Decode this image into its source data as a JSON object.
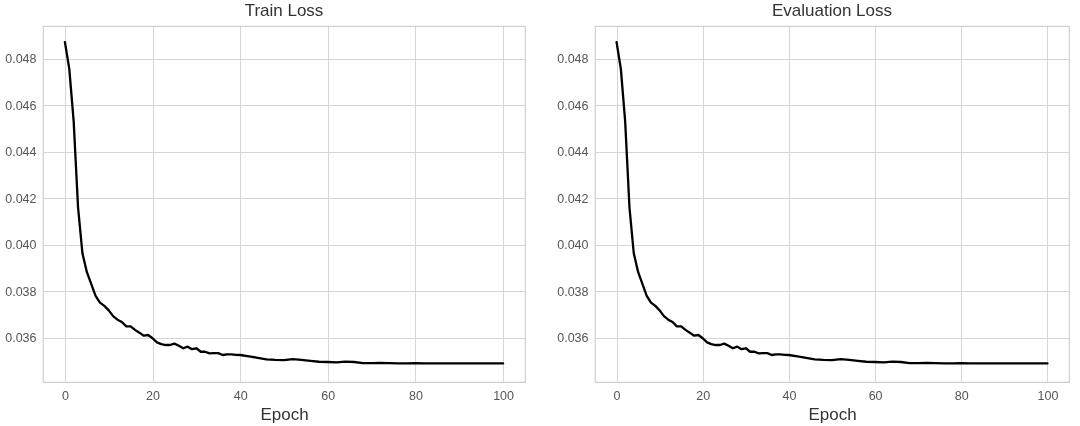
{
  "chart_data": [
    {
      "type": "line",
      "title": "Train Loss",
      "xlabel": "Epoch",
      "x": [
        0,
        1,
        2,
        3,
        4,
        5,
        6,
        7,
        8,
        9,
        10,
        11,
        12,
        13,
        14,
        15,
        16,
        17,
        18,
        19,
        20,
        21,
        22,
        23,
        24,
        25,
        26,
        27,
        28,
        29,
        30,
        31,
        32,
        33,
        34,
        35,
        36,
        37,
        38,
        39,
        40,
        42,
        44,
        46,
        48,
        50,
        52,
        54,
        56,
        58,
        60,
        62,
        64,
        66,
        68,
        70,
        72,
        74,
        76,
        78,
        80,
        82,
        84,
        86,
        88,
        90,
        92,
        94,
        96,
        98,
        100
      ],
      "series": [
        {
          "color": "#000000",
          "values": [
            0.04871,
            0.04756,
            0.0453,
            0.0416,
            0.03963,
            0.03883,
            0.03832,
            0.0378,
            0.03751,
            0.03737,
            0.03718,
            0.03693,
            0.03678,
            0.03668,
            0.03649,
            0.03649,
            0.03634,
            0.03622,
            0.03609,
            0.03612,
            0.03598,
            0.0358,
            0.03573,
            0.03569,
            0.03569,
            0.03575,
            0.03566,
            0.03555,
            0.03562,
            0.03551,
            0.03555,
            0.0354,
            0.0354,
            0.03533,
            0.03534,
            0.03534,
            0.03526,
            0.03529,
            0.03529,
            0.03527,
            0.03526,
            0.0352,
            0.03514,
            0.03507,
            0.03505,
            0.03504,
            0.03508,
            0.03505,
            0.03501,
            0.03497,
            0.03496,
            0.03494,
            0.03498,
            0.03496,
            0.03491,
            0.03491,
            0.03492,
            0.03491,
            0.0349,
            0.0349,
            0.03491,
            0.0349,
            0.0349,
            0.0349,
            0.0349,
            0.0349,
            0.0349,
            0.0349,
            0.0349,
            0.0349,
            0.0349
          ]
        }
      ],
      "xlim": [
        -5,
        105
      ],
      "ylim": [
        0.0341,
        0.0494
      ],
      "xticks": [
        0,
        20,
        40,
        60,
        80,
        100
      ],
      "yticks": [
        0.036,
        0.038,
        {
          "value": 0.04,
          "label": "0.040"
        },
        0.042,
        0.044,
        0.046,
        0.048
      ],
      "grid": true
    },
    {
      "type": "line",
      "title": "Evaluation Loss",
      "xlabel": "Epoch",
      "x": [
        0,
        1,
        2,
        3,
        4,
        5,
        6,
        7,
        8,
        9,
        10,
        11,
        12,
        13,
        14,
        15,
        16,
        17,
        18,
        19,
        20,
        21,
        22,
        23,
        24,
        25,
        26,
        27,
        28,
        29,
        30,
        31,
        32,
        33,
        34,
        35,
        36,
        37,
        38,
        39,
        40,
        42,
        44,
        46,
        48,
        50,
        52,
        54,
        56,
        58,
        60,
        62,
        64,
        66,
        68,
        70,
        72,
        74,
        76,
        78,
        80,
        82,
        84,
        86,
        88,
        90,
        92,
        94,
        96,
        98,
        100
      ],
      "series": [
        {
          "color": "#000000",
          "values": [
            0.04871,
            0.04756,
            0.0453,
            0.0416,
            0.03963,
            0.03883,
            0.03832,
            0.0378,
            0.03751,
            0.03737,
            0.03718,
            0.03693,
            0.03678,
            0.03668,
            0.03649,
            0.03649,
            0.03634,
            0.03622,
            0.03609,
            0.03612,
            0.03598,
            0.0358,
            0.03573,
            0.03569,
            0.03569,
            0.03575,
            0.03566,
            0.03555,
            0.03562,
            0.03551,
            0.03555,
            0.0354,
            0.0354,
            0.03533,
            0.03534,
            0.03534,
            0.03526,
            0.03529,
            0.03529,
            0.03527,
            0.03526,
            0.0352,
            0.03514,
            0.03507,
            0.03505,
            0.03504,
            0.03508,
            0.03505,
            0.03501,
            0.03497,
            0.03496,
            0.03494,
            0.03498,
            0.03496,
            0.03491,
            0.03491,
            0.03492,
            0.03491,
            0.0349,
            0.0349,
            0.03491,
            0.0349,
            0.0349,
            0.0349,
            0.0349,
            0.0349,
            0.0349,
            0.0349,
            0.0349,
            0.0349,
            0.0349
          ]
        }
      ],
      "xlim": [
        -5,
        105
      ],
      "ylim": [
        0.0341,
        0.0494
      ],
      "xticks": [
        0,
        20,
        40,
        60,
        80,
        100
      ],
      "yticks": [
        0.036,
        0.038,
        {
          "value": 0.04,
          "label": "0.040"
        },
        0.042,
        0.044,
        0.046,
        0.048
      ],
      "grid": true
    }
  ]
}
